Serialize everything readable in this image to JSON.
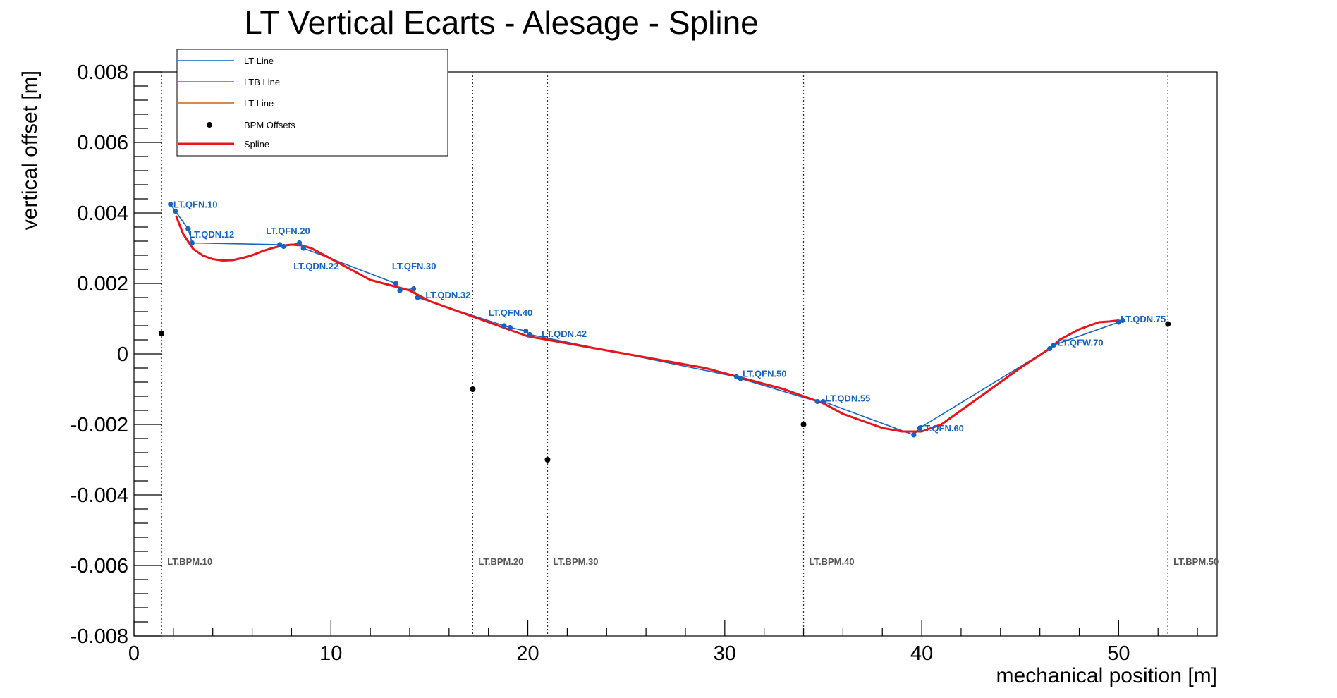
{
  "chart_data": {
    "type": "line",
    "title": "LT Vertical Ecarts - Alesage - Spline",
    "xlabel": "mechanical position [m]",
    "ylabel": "vertical offset [m]",
    "xlim": [
      0,
      55
    ],
    "ylim": [
      -0.008,
      0.008
    ],
    "x_ticks": [
      0,
      10,
      20,
      30,
      40,
      50
    ],
    "x_tick_labels": [
      "0",
      "10",
      "20",
      "30",
      "40",
      "50"
    ],
    "y_ticks": [
      -0.008,
      -0.006,
      -0.004,
      -0.002,
      0,
      0.002,
      0.004,
      0.006,
      0.008
    ],
    "y_tick_labels": [
      "-0.008",
      "-0.006",
      "-0.004",
      "-0.002",
      "0",
      "0.002",
      "0.004",
      "0.006",
      "0.008"
    ],
    "legend": {
      "position": "top-left",
      "entries": [
        {
          "label": "LT Line",
          "color": "#1565c0",
          "marker": "line"
        },
        {
          "label": "LTB Line",
          "color": "#2e9e2e",
          "marker": "line"
        },
        {
          "label": "LT Line",
          "color": "#c8651b",
          "marker": "line"
        },
        {
          "label": "BPM Offsets",
          "color": "#000000",
          "marker": "dot"
        },
        {
          "label": "Spline",
          "color": "#e8141a",
          "marker": "thick-line"
        }
      ]
    },
    "colors": {
      "lt_line": "#1565c0",
      "spline": "#e8141a",
      "bpm": "#000000",
      "quad_label": "#1565c0",
      "bpm_label": "#555555"
    },
    "series": [
      {
        "name": "LT Line",
        "type": "line",
        "x": [
          1.85,
          2.1,
          2.75,
          2.95,
          7.4,
          7.6,
          8.4,
          8.6,
          13.3,
          13.5,
          14.2,
          14.4,
          18.8,
          19.1,
          19.9,
          20.1,
          30.6,
          30.8,
          34.7,
          35.0,
          39.6,
          39.9,
          46.5,
          46.7,
          50.0,
          50.2
        ],
        "y": [
          0.00425,
          0.00405,
          0.00355,
          0.00315,
          0.0031,
          0.00305,
          0.00315,
          0.003,
          0.002,
          0.0018,
          0.00185,
          0.0016,
          0.0008,
          0.00075,
          0.00065,
          0.00055,
          -0.00065,
          -0.0007,
          -0.00135,
          -0.00135,
          -0.0023,
          -0.0021,
          0.00015,
          0.00025,
          0.0009,
          0.00095
        ]
      },
      {
        "name": "Spline",
        "type": "line",
        "x": [
          2.15,
          2.5,
          3.0,
          3.5,
          4.0,
          4.5,
          5.0,
          5.5,
          6.0,
          6.5,
          7.0,
          7.5,
          8.0,
          8.5,
          9.0,
          10.0,
          11.0,
          12.0,
          13.0,
          14.0,
          15.0,
          16.0,
          17.0,
          18.0,
          19.0,
          20.0,
          21.0,
          23.0,
          25.0,
          27.0,
          29.0,
          31.0,
          33.0,
          35.0,
          36.0,
          37.0,
          38.0,
          39.0,
          39.5,
          40.0,
          41.0,
          42.0,
          43.0,
          44.0,
          45.0,
          46.5,
          47.0,
          48.0,
          49.0,
          49.5,
          50.0
        ],
        "y": [
          0.0039,
          0.0034,
          0.00298,
          0.00279,
          0.00269,
          0.00265,
          0.00266,
          0.00272,
          0.0028,
          0.00291,
          0.003,
          0.00307,
          0.0031,
          0.00308,
          0.003,
          0.0027,
          0.0024,
          0.0021,
          0.00195,
          0.0018,
          0.0015,
          0.0013,
          0.0011,
          0.0009,
          0.0007,
          0.0005,
          0.0004,
          0.0002,
          0.0,
          -0.0002,
          -0.0004,
          -0.0007,
          -0.001,
          -0.0014,
          -0.0017,
          -0.0019,
          -0.0021,
          -0.0022,
          -0.0022,
          -0.0022,
          -0.002,
          -0.0016,
          -0.0012,
          -0.0008,
          -0.0004,
          0.00015,
          0.0004,
          0.0007,
          0.0009,
          0.00092,
          0.00095
        ]
      },
      {
        "name": "BPM Offsets",
        "type": "scatter",
        "x": [
          1.4,
          17.2,
          21.0,
          34.0,
          52.5
        ],
        "y": [
          0.00058,
          -0.001,
          -0.003,
          -0.002,
          0.00085
        ]
      }
    ],
    "bpm_lines": [
      {
        "x": 1.4,
        "label": "LT.BPM.10"
      },
      {
        "x": 17.2,
        "label": "LT.BPM.20"
      },
      {
        "x": 21.0,
        "label": "LT.BPM.30"
      },
      {
        "x": 34.0,
        "label": "LT.BPM.40"
      },
      {
        "x": 52.5,
        "label": "LT.BPM.50"
      }
    ],
    "quad_annotations": [
      {
        "label": "LT.QFN.10",
        "x": 2.0,
        "y": 0.00425
      },
      {
        "label": "LT.QDN.12",
        "x": 2.8,
        "y": 0.0034
      },
      {
        "label": "LT.QFN.20",
        "x": 6.7,
        "y": 0.0035
      },
      {
        "label": "LT.QDN.22",
        "x": 8.1,
        "y": 0.0025
      },
      {
        "label": "LT.QFN.30",
        "x": 13.1,
        "y": 0.0025
      },
      {
        "label": "LT.QDN.32",
        "x": 14.8,
        "y": 0.00168
      },
      {
        "label": "LT.QFN.40",
        "x": 18.0,
        "y": 0.00118
      },
      {
        "label": "LT.QDN.42",
        "x": 20.7,
        "y": 0.00058
      },
      {
        "label": "LT.QFN.50",
        "x": 30.9,
        "y": -0.00055
      },
      {
        "label": "LT.QDN.55",
        "x": 35.1,
        "y": -0.00125
      },
      {
        "label": "LT.QFN.60",
        "x": 39.9,
        "y": -0.0021
      },
      {
        "label": "LT.QFW.70",
        "x": 46.9,
        "y": 0.00033
      },
      {
        "label": "LT.QDN.75",
        "x": 50.1,
        "y": 0.001
      }
    ]
  }
}
